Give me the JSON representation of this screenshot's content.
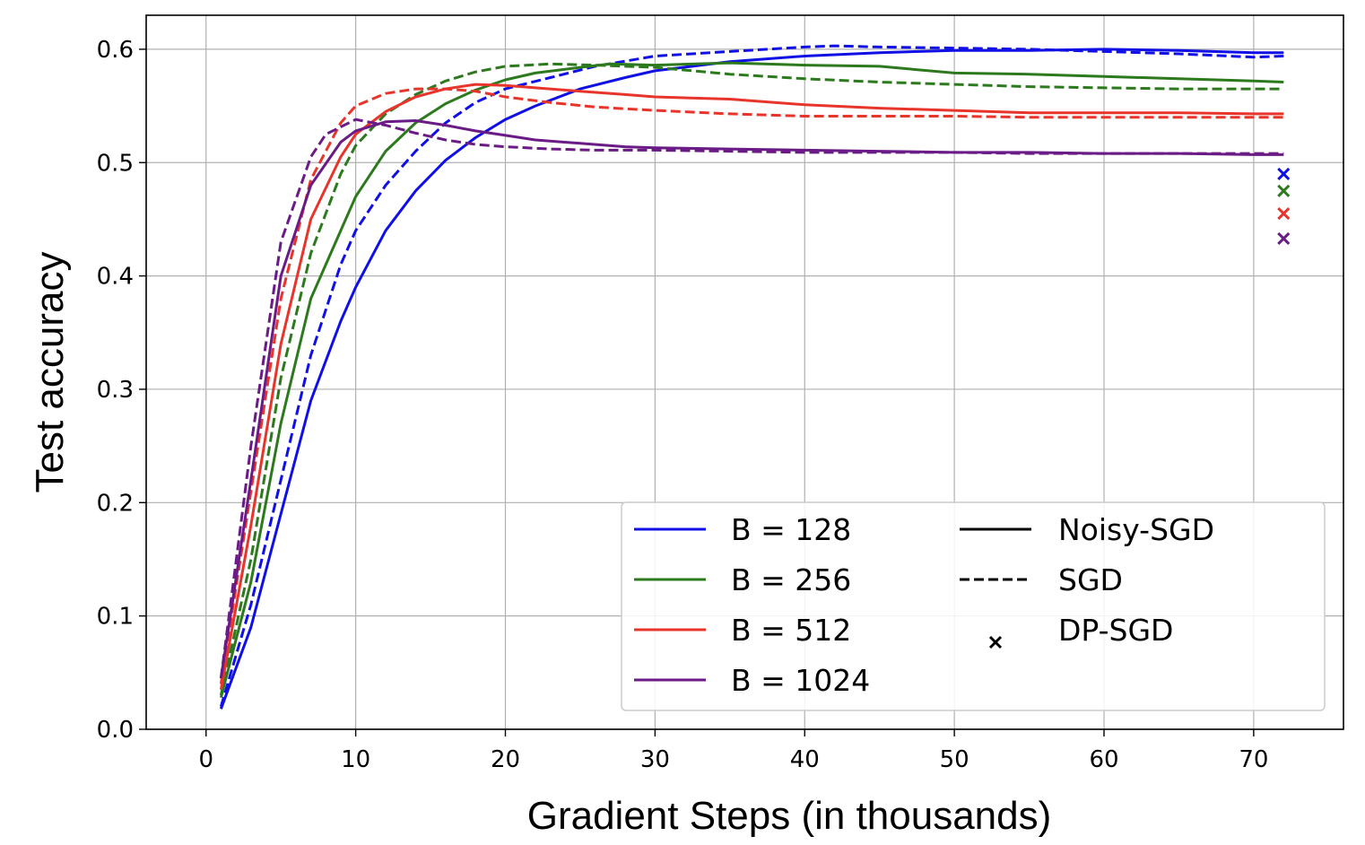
{
  "chart_data": {
    "type": "line",
    "title": "",
    "xlabel": "Gradient Steps (in thousands)",
    "ylabel": "Test accuracy",
    "xlim": [
      -4,
      76
    ],
    "ylim": [
      0.0,
      0.63
    ],
    "xticks": [
      0,
      10,
      20,
      30,
      40,
      50,
      60,
      70
    ],
    "xtick_labels": [
      "0",
      "10",
      "20",
      "30",
      "40",
      "50",
      "60",
      "70"
    ],
    "yticks": [
      0.0,
      0.1,
      0.2,
      0.3,
      0.4,
      0.5,
      0.6
    ],
    "ytick_labels": [
      "0.0",
      "0.1",
      "0.2",
      "0.3",
      "0.4",
      "0.5",
      "0.6"
    ],
    "grid": true,
    "legend_position": "lower-right",
    "series": [
      {
        "name": "B = 128",
        "method": "Noisy-SGD",
        "color": "#1010e6",
        "style": "solid",
        "x": [
          1,
          3,
          5,
          7,
          9,
          10,
          12,
          14,
          16,
          18,
          20,
          22,
          25,
          28,
          30,
          35,
          40,
          45,
          50,
          55,
          60,
          65,
          70,
          72
        ],
        "y": [
          0.018,
          0.09,
          0.19,
          0.29,
          0.36,
          0.39,
          0.44,
          0.475,
          0.502,
          0.522,
          0.538,
          0.55,
          0.565,
          0.575,
          0.581,
          0.589,
          0.594,
          0.597,
          0.599,
          0.599,
          0.6,
          0.599,
          0.597,
          0.597
        ]
      },
      {
        "name": "B = 128",
        "method": "SGD",
        "color": "#1010e6",
        "style": "dashed",
        "x": [
          1,
          3,
          5,
          7,
          9,
          10,
          12,
          14,
          16,
          18,
          20,
          23,
          26,
          30,
          35,
          40,
          42,
          45,
          50,
          55,
          60,
          65,
          70,
          72
        ],
        "y": [
          0.02,
          0.11,
          0.22,
          0.33,
          0.41,
          0.44,
          0.48,
          0.51,
          0.535,
          0.553,
          0.565,
          0.575,
          0.585,
          0.594,
          0.598,
          0.602,
          0.603,
          0.602,
          0.601,
          0.6,
          0.598,
          0.596,
          0.593,
          0.594
        ]
      },
      {
        "name": "B = 256",
        "method": "Noisy-SGD",
        "color": "#2d7a1e",
        "style": "solid",
        "x": [
          1,
          3,
          5,
          7,
          9,
          10,
          12,
          14,
          16,
          18,
          20,
          22,
          25,
          27,
          30,
          35,
          40,
          45,
          50,
          55,
          60,
          65,
          70,
          72
        ],
        "y": [
          0.028,
          0.13,
          0.27,
          0.38,
          0.44,
          0.47,
          0.51,
          0.535,
          0.552,
          0.564,
          0.573,
          0.579,
          0.584,
          0.587,
          0.586,
          0.588,
          0.586,
          0.585,
          0.579,
          0.578,
          0.576,
          0.574,
          0.572,
          0.571
        ]
      },
      {
        "name": "B = 256",
        "method": "SGD",
        "color": "#2d7a1e",
        "style": "dashed",
        "x": [
          1,
          3,
          5,
          7,
          9,
          10,
          12,
          14,
          16,
          18,
          20,
          23,
          26,
          30,
          35,
          40,
          45,
          50,
          55,
          60,
          65,
          70,
          72
        ],
        "y": [
          0.03,
          0.15,
          0.31,
          0.42,
          0.49,
          0.515,
          0.543,
          0.56,
          0.572,
          0.58,
          0.585,
          0.587,
          0.586,
          0.584,
          0.578,
          0.574,
          0.571,
          0.569,
          0.567,
          0.566,
          0.565,
          0.565,
          0.565
        ]
      },
      {
        "name": "B = 512",
        "method": "Noisy-SGD",
        "color": "#e8352c",
        "style": "solid",
        "x": [
          1,
          3,
          5,
          7,
          9,
          10,
          12,
          14,
          16,
          18,
          20,
          22,
          25,
          28,
          30,
          35,
          40,
          45,
          50,
          55,
          60,
          65,
          70,
          72
        ],
        "y": [
          0.035,
          0.18,
          0.34,
          0.45,
          0.505,
          0.525,
          0.545,
          0.558,
          0.565,
          0.569,
          0.568,
          0.566,
          0.563,
          0.56,
          0.558,
          0.556,
          0.551,
          0.548,
          0.546,
          0.544,
          0.544,
          0.544,
          0.543,
          0.543
        ]
      },
      {
        "name": "B = 512",
        "method": "SGD",
        "color": "#e8352c",
        "style": "dashed",
        "x": [
          1,
          3,
          5,
          7,
          9,
          10,
          12,
          14,
          16,
          18,
          20,
          23,
          26,
          30,
          35,
          40,
          45,
          50,
          55,
          60,
          65,
          70,
          72
        ],
        "y": [
          0.04,
          0.21,
          0.38,
          0.485,
          0.535,
          0.55,
          0.561,
          0.565,
          0.565,
          0.563,
          0.558,
          0.553,
          0.549,
          0.546,
          0.543,
          0.541,
          0.541,
          0.541,
          0.54,
          0.54,
          0.54,
          0.54,
          0.54
        ]
      },
      {
        "name": "B = 1024",
        "method": "Noisy-SGD",
        "color": "#6a1b86",
        "style": "solid",
        "x": [
          1,
          3,
          5,
          7,
          9,
          10,
          12,
          14,
          16,
          18,
          20,
          22,
          25,
          28,
          30,
          35,
          40,
          45,
          50,
          55,
          60,
          65,
          70,
          72
        ],
        "y": [
          0.045,
          0.22,
          0.4,
          0.48,
          0.518,
          0.528,
          0.536,
          0.537,
          0.533,
          0.528,
          0.524,
          0.52,
          0.517,
          0.514,
          0.513,
          0.512,
          0.511,
          0.51,
          0.509,
          0.509,
          0.508,
          0.508,
          0.507,
          0.507
        ]
      },
      {
        "name": "B = 1024",
        "method": "SGD",
        "color": "#6a1b86",
        "style": "dashed",
        "x": [
          1,
          3,
          5,
          7,
          8,
          10,
          12,
          14,
          16,
          18,
          20,
          23,
          26,
          30,
          35,
          40,
          45,
          50,
          55,
          60,
          65,
          70,
          72
        ],
        "y": [
          0.045,
          0.25,
          0.43,
          0.505,
          0.525,
          0.538,
          0.533,
          0.526,
          0.52,
          0.516,
          0.514,
          0.512,
          0.511,
          0.511,
          0.51,
          0.509,
          0.509,
          0.509,
          0.508,
          0.508,
          0.508,
          0.508,
          0.508
        ]
      }
    ],
    "dp_sgd_points": [
      {
        "name": "B = 128",
        "color": "#1010e6",
        "x": 72,
        "y": 0.49
      },
      {
        "name": "B = 256",
        "color": "#2d7a1e",
        "x": 72,
        "y": 0.475
      },
      {
        "name": "B = 512",
        "color": "#e8352c",
        "x": 72,
        "y": 0.455
      },
      {
        "name": "B = 1024",
        "color": "#6a1b86",
        "x": 72,
        "y": 0.433
      }
    ],
    "legend": {
      "batch_entries": [
        {
          "label": "B = 128",
          "color": "#1010e6"
        },
        {
          "label": "B = 256",
          "color": "#2d7a1e"
        },
        {
          "label": "B = 512",
          "color": "#e8352c"
        },
        {
          "label": "B = 1024",
          "color": "#6a1b86"
        }
      ],
      "method_entries": [
        {
          "label": "Noisy-SGD",
          "style": "solid"
        },
        {
          "label": "SGD",
          "style": "dashed"
        },
        {
          "label": "DP-SGD",
          "style": "marker-x"
        }
      ]
    }
  }
}
